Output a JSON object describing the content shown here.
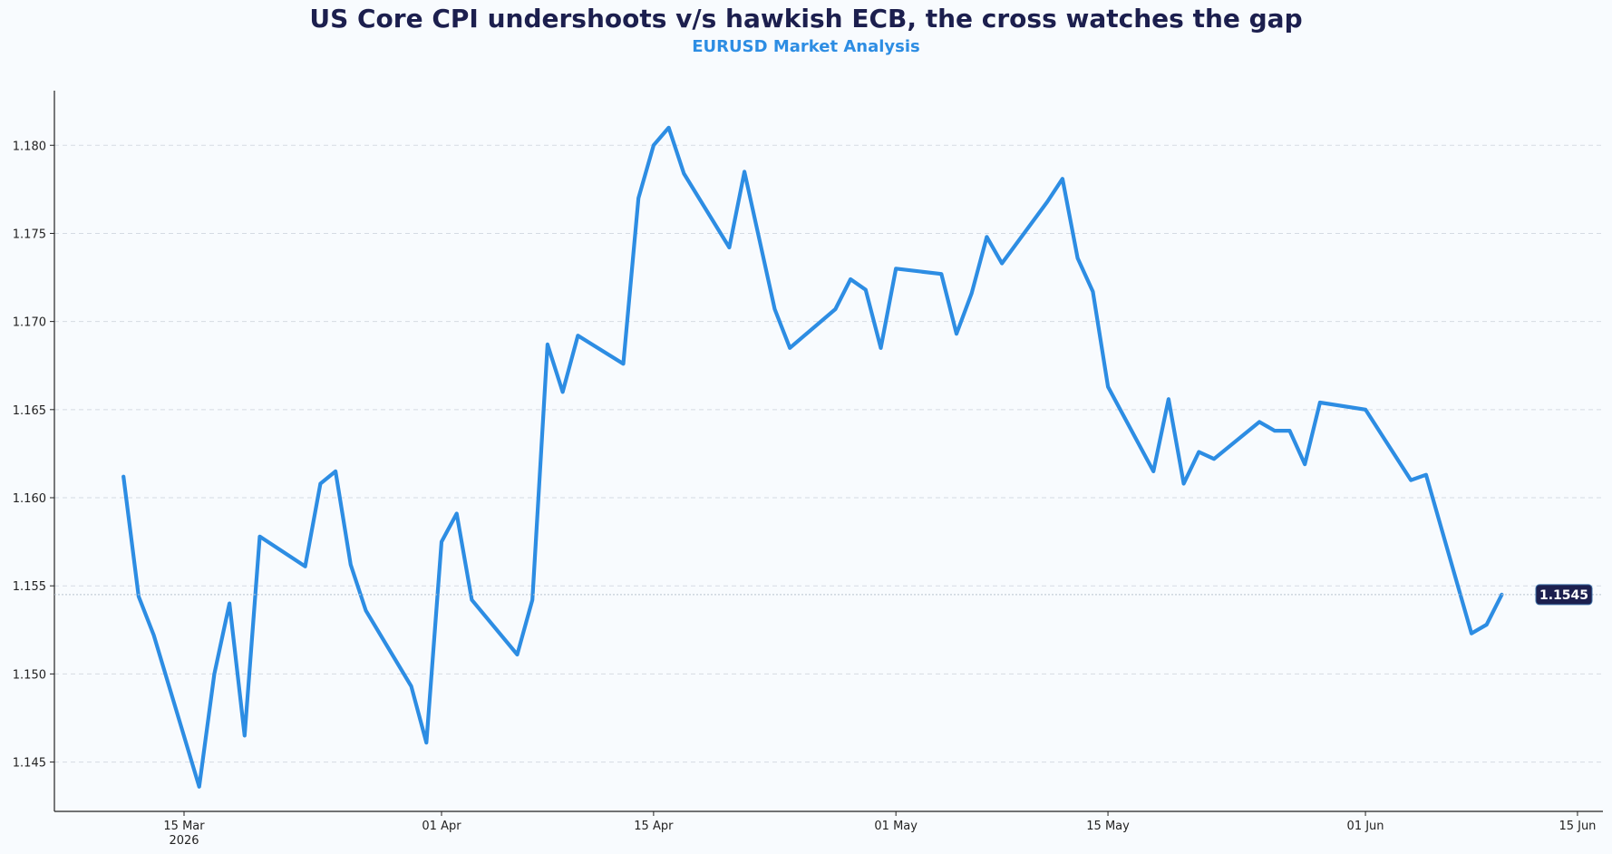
{
  "title": "US Core CPI undershoots v/s hawkish ECB, the cross watches the gap",
  "subtitle": "EURUSD Market Analysis",
  "chart_data": {
    "type": "line",
    "title": "US Core CPI undershoots v/s hawkish ECB, the cross watches the gap",
    "subtitle": "EURUSD Market Analysis",
    "xlabel": "",
    "ylabel": "",
    "ylim": [
      1.1422,
      1.1831
    ],
    "xlim": [
      "2026-03-06",
      "2026-06-15"
    ],
    "grid": "horizontal dashed",
    "y_ticks": [
      "1.145",
      "1.150",
      "1.155",
      "1.160",
      "1.165",
      "1.170",
      "1.175",
      "1.180"
    ],
    "x_ticks": [
      {
        "date": "2026-03-15",
        "label": "15 Mar",
        "sublabel": "2026"
      },
      {
        "date": "2026-04-01",
        "label": "01 Apr",
        "sublabel": ""
      },
      {
        "date": "2026-04-15",
        "label": "15 Apr",
        "sublabel": ""
      },
      {
        "date": "2026-05-01",
        "label": "01 May",
        "sublabel": ""
      },
      {
        "date": "2026-05-15",
        "label": "15 May",
        "sublabel": ""
      },
      {
        "date": "2026-06-01",
        "label": "01 Jun",
        "sublabel": ""
      },
      {
        "date": "2026-06-15",
        "label": "15 Jun",
        "sublabel": ""
      }
    ],
    "last_value_label": "1.1545",
    "colors": {
      "line": "#2d8de3",
      "badge": "#1c1f4e",
      "badge_text": "#ffffff",
      "title": "#1c1f4e",
      "subtitle": "#2d8de3"
    },
    "series": [
      {
        "x": [
          "2026-03-11",
          "2026-03-12",
          "2026-03-13",
          "2026-03-16",
          "2026-03-17",
          "2026-03-18",
          "2026-03-19",
          "2026-03-20",
          "2026-03-23",
          "2026-03-24",
          "2026-03-25",
          "2026-03-26",
          "2026-03-27",
          "2026-03-30",
          "2026-03-31",
          "2026-04-01",
          "2026-04-02",
          "2026-04-03",
          "2026-04-06",
          "2026-04-07",
          "2026-04-08",
          "2026-04-09",
          "2026-04-10",
          "2026-04-13",
          "2026-04-14",
          "2026-04-15",
          "2026-04-16",
          "2026-04-17",
          "2026-04-20",
          "2026-04-21",
          "2026-04-22",
          "2026-04-23",
          "2026-04-24",
          "2026-04-27",
          "2026-04-28",
          "2026-04-29",
          "2026-04-30",
          "2026-05-01",
          "2026-05-04",
          "2026-05-05",
          "2026-05-06",
          "2026-05-07",
          "2026-05-08",
          "2026-05-11",
          "2026-05-12",
          "2026-05-13",
          "2026-05-14",
          "2026-05-15",
          "2026-05-18",
          "2026-05-19",
          "2026-05-20",
          "2026-05-21",
          "2026-05-22",
          "2026-05-25",
          "2026-05-26",
          "2026-05-27",
          "2026-05-28",
          "2026-05-29",
          "2026-06-01",
          "2026-06-04",
          "2026-06-05",
          "2026-06-08",
          "2026-06-09",
          "2026-06-10"
        ],
        "values": [
          1.1612,
          1.1544,
          1.1522,
          1.1436,
          1.15,
          1.154,
          1.1465,
          1.1578,
          1.1561,
          1.1608,
          1.1615,
          1.1562,
          1.1536,
          1.1493,
          1.1461,
          1.1575,
          1.1591,
          1.1542,
          1.1511,
          1.1542,
          1.1687,
          1.166,
          1.1692,
          1.1676,
          1.177,
          1.18,
          1.181,
          1.1784,
          1.1742,
          1.1785,
          1.1746,
          1.1707,
          1.1685,
          1.1707,
          1.1724,
          1.1718,
          1.1685,
          1.173,
          1.1727,
          1.1693,
          1.1716,
          1.1748,
          1.1733,
          1.1768,
          1.1781,
          1.1736,
          1.1717,
          1.1663,
          1.1615,
          1.1656,
          1.1608,
          1.1626,
          1.1622,
          1.1643,
          1.1638,
          1.1638,
          1.1619,
          1.1654,
          1.165,
          1.161,
          1.1613,
          1.1523,
          1.1528,
          1.1545
        ]
      }
    ]
  }
}
